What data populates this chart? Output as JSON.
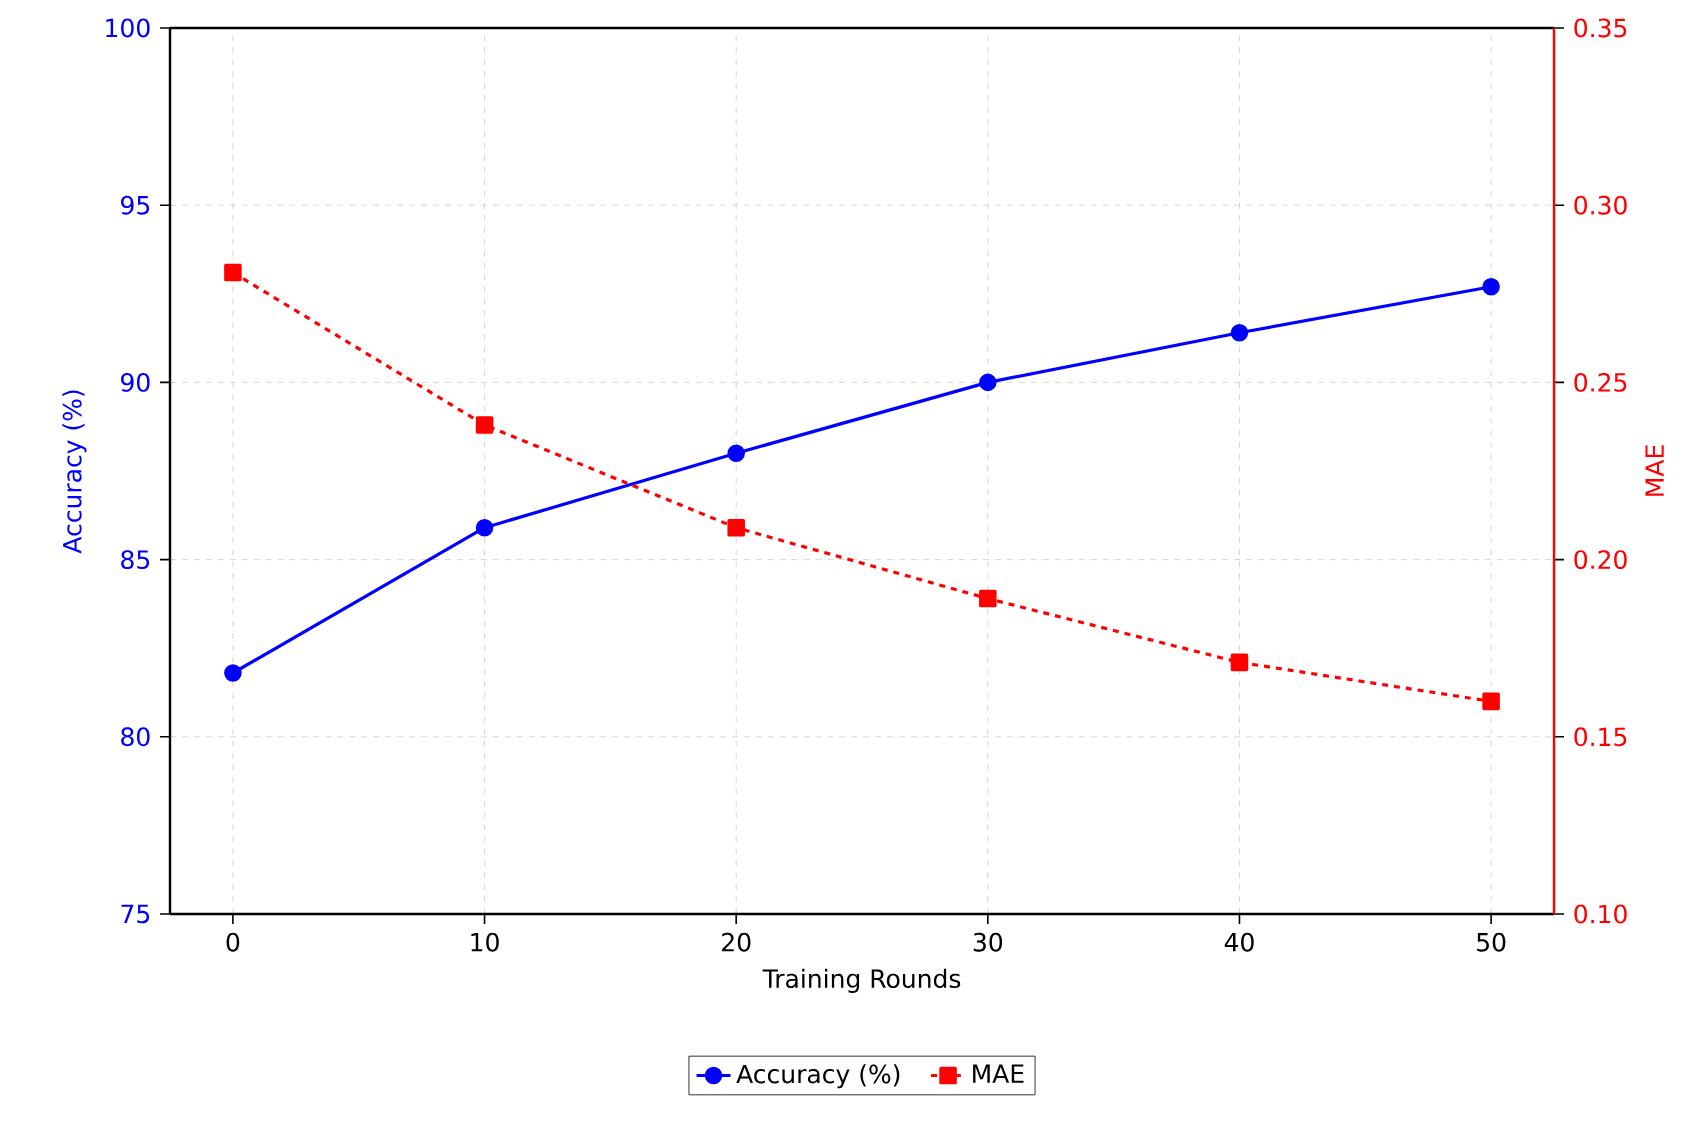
{
  "chart_data": {
    "type": "line",
    "xlabel": "Training Rounds",
    "ylabel": "Accuracy (%)",
    "y2label": "MAE",
    "x": [
      0,
      10,
      20,
      30,
      40,
      50
    ],
    "xlim": [
      -2.5,
      52.5
    ],
    "xticks": [
      0,
      10,
      20,
      30,
      40,
      50
    ],
    "ylim": [
      75,
      100
    ],
    "yticks": [
      75,
      80,
      85,
      90,
      95,
      100
    ],
    "y2lim": [
      0.1,
      0.35
    ],
    "y2ticks": [
      {
        "value": 0.1,
        "label": "0.10"
      },
      {
        "value": 0.15,
        "label": "0.15"
      },
      {
        "value": 0.2,
        "label": "0.20"
      },
      {
        "value": 0.25,
        "label": "0.25"
      },
      {
        "value": 0.3,
        "label": "0.30"
      },
      {
        "value": 0.35,
        "label": "0.35"
      }
    ],
    "grid": true,
    "legend": "bottom",
    "series": [
      {
        "name": "Accuracy (%)",
        "color": "#0000ff",
        "marker": "circle",
        "line_style": "solid",
        "values": [
          81.8,
          85.9,
          88.0,
          90.0,
          91.4,
          92.7
        ]
      },
      {
        "name": "MAE",
        "color": "#ff0000",
        "marker": "square",
        "line_style": "dashed",
        "axis": "y2",
        "values": [
          0.281,
          0.238,
          0.209,
          0.189,
          0.171,
          0.16
        ]
      }
    ]
  }
}
